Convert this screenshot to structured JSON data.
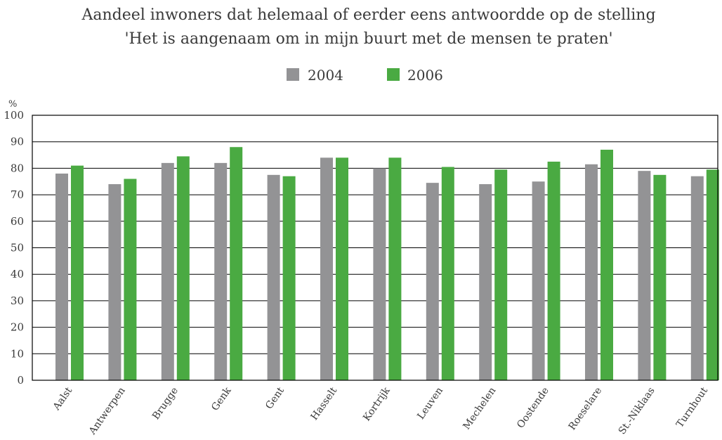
{
  "chart_data": {
    "type": "bar",
    "title_lines": [
      "Aandeel inwoners dat helemaal of eerder eens antwoordde op de stelling",
      "'Het is aangenaam om in mijn buurt met de mensen te praten'"
    ],
    "ylabel": "%",
    "ylim": [
      0,
      100
    ],
    "yticks": [
      0,
      10,
      20,
      30,
      40,
      50,
      60,
      70,
      80,
      90,
      100
    ],
    "grid": true,
    "legend_position": "top-center",
    "categories": [
      "Aalst",
      "Antwerpen",
      "Brugge",
      "Genk",
      "Gent",
      "Hasselt",
      "Kortrijk",
      "Leuven",
      "Mechelen",
      "Oostende",
      "Roeselare",
      "St.-Niklaas",
      "Turnhout"
    ],
    "series": [
      {
        "name": "2004",
        "color": "#939395",
        "values": [
          78,
          74,
          82,
          82,
          77.5,
          84,
          80,
          74.5,
          74,
          75,
          81.5,
          79,
          77
        ]
      },
      {
        "name": "2006",
        "color": "#4aaa42",
        "values": [
          81,
          76,
          84.5,
          88,
          77,
          84,
          84,
          80.5,
          79.5,
          82.5,
          87,
          77.5,
          79.5
        ]
      }
    ]
  }
}
